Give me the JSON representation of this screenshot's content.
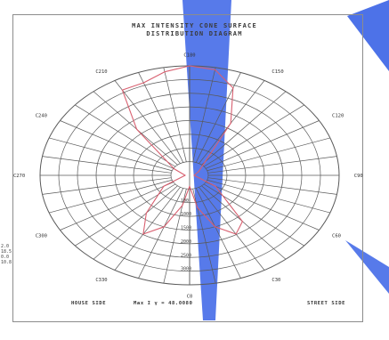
{
  "titles": {
    "line1": "MAX INTENSITY CONE SURFACE",
    "line2": "DISTRIBUTION DIAGRAM"
  },
  "colors": {
    "grid": "#5a5a5a",
    "curve": "#d86070",
    "accent": "#2f5be0"
  },
  "side_values": [
    "2.0",
    "18.5",
    "0.0",
    "10.8"
  ],
  "footer": {
    "left": "HOUSE SIDE",
    "center": "Max I γ = 48.0080",
    "right": "STREET SIDE"
  },
  "chart_data": {
    "type": "polar",
    "title": "MAX INTENSITY CONE SURFACE DISTRIBUTION DIAGRAM",
    "c_plane_labels": [
      {
        "angle": 0,
        "label": "C0"
      },
      {
        "angle": 30,
        "label": "C30"
      },
      {
        "angle": 60,
        "label": "C60"
      },
      {
        "angle": 90,
        "label": "C90"
      },
      {
        "angle": 120,
        "label": "C120"
      },
      {
        "angle": 150,
        "label": "C150"
      },
      {
        "angle": 180,
        "label": "C180"
      },
      {
        "angle": 210,
        "label": "C210"
      },
      {
        "angle": 240,
        "label": "C240"
      },
      {
        "angle": 270,
        "label": "C270"
      },
      {
        "angle": 300,
        "label": "C300"
      },
      {
        "angle": 330,
        "label": "C330"
      }
    ],
    "radial_labels": [
      "100",
      "1000",
      "1500",
      "2000",
      "2500",
      "3000"
    ],
    "grid_rings": 8,
    "grid_spokes": 36,
    "series": [
      {
        "points": [
          {
            "c": 0,
            "r": 0.1
          },
          {
            "c": 10,
            "r": 0.3
          },
          {
            "c": 20,
            "r": 0.5
          },
          {
            "c": 30,
            "r": 0.62
          },
          {
            "c": 40,
            "r": 0.55
          },
          {
            "c": 60,
            "r": 0.2
          },
          {
            "c": 90,
            "r": 0.03
          },
          {
            "c": 120,
            "r": 0.07
          },
          {
            "c": 150,
            "r": 0.55
          },
          {
            "c": 160,
            "r": 0.85
          },
          {
            "c": 170,
            "r": 0.98
          },
          {
            "c": 180,
            "r": 1.0
          },
          {
            "c": 190,
            "r": 0.96
          },
          {
            "c": 200,
            "r": 0.9
          },
          {
            "c": 210,
            "r": 0.9
          },
          {
            "c": 220,
            "r": 0.55
          },
          {
            "c": 240,
            "r": 0.12
          },
          {
            "c": 270,
            "r": 0.03
          },
          {
            "c": 300,
            "r": 0.2
          },
          {
            "c": 320,
            "r": 0.45
          },
          {
            "c": 330,
            "r": 0.62
          },
          {
            "c": 340,
            "r": 0.5
          },
          {
            "c": 350,
            "r": 0.28
          }
        ]
      }
    ]
  }
}
